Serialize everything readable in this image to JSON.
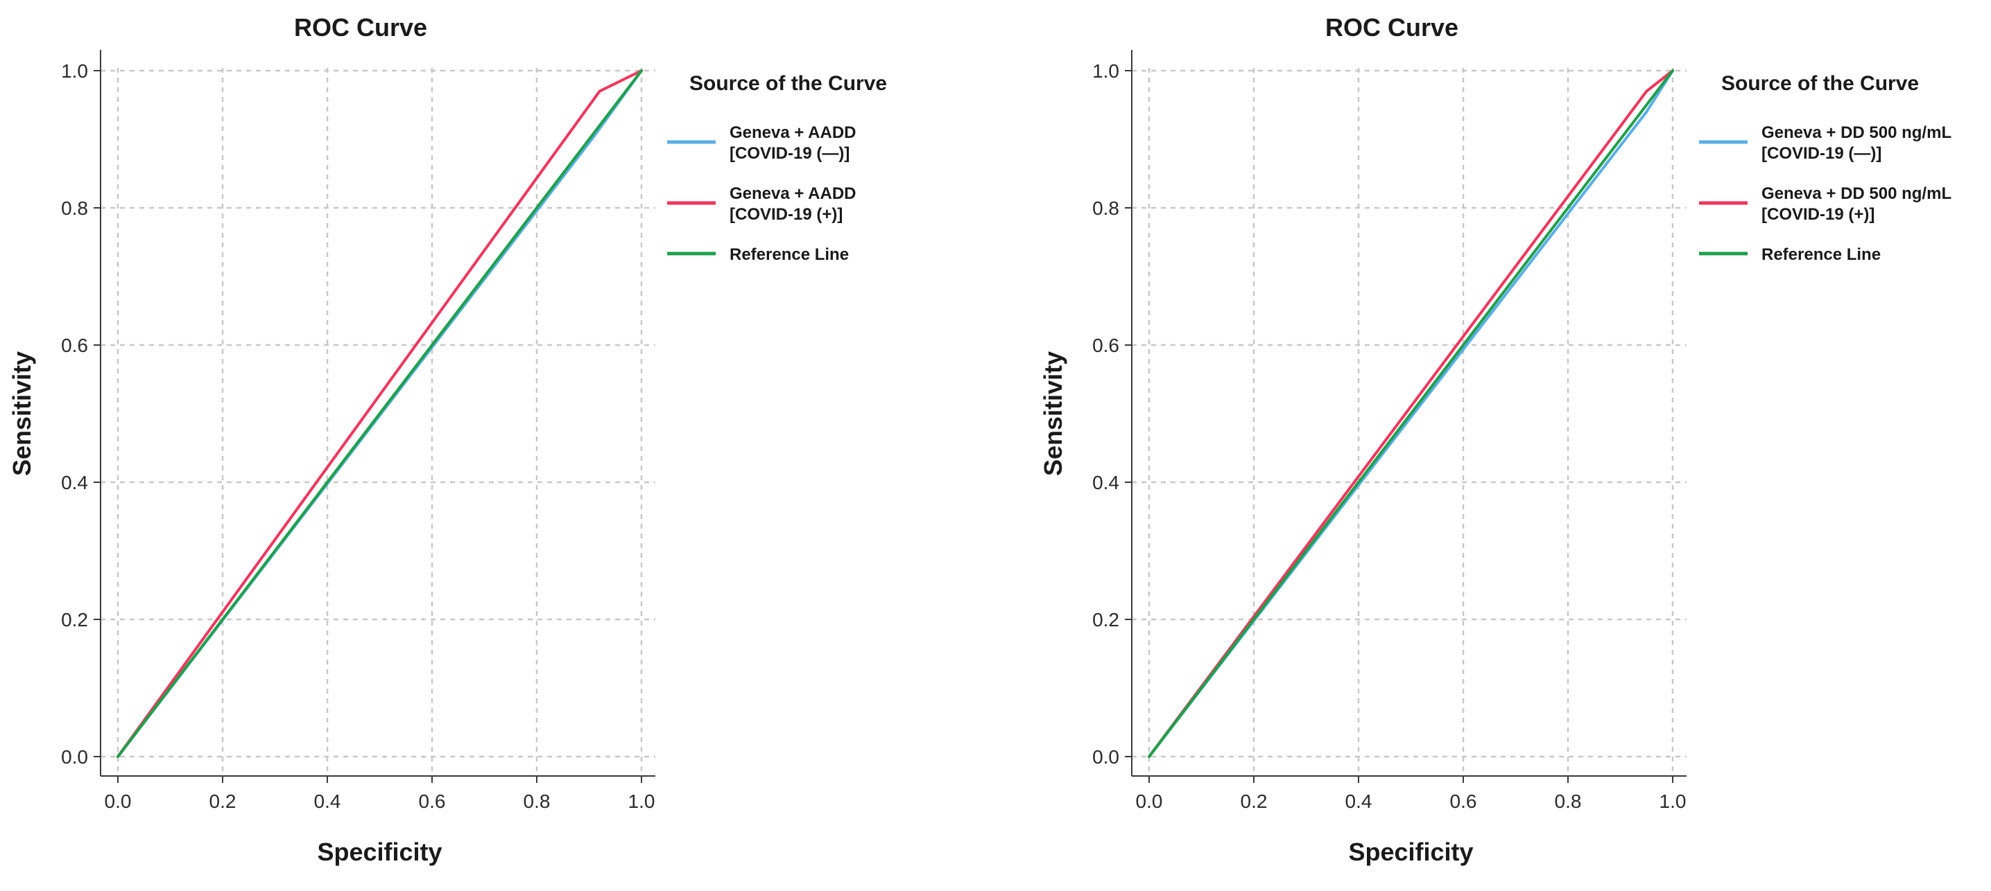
{
  "chart_data": [
    {
      "type": "line",
      "title": "ROC Curve",
      "xlabel": "Specificity",
      "ylabel": "Sensitivity",
      "xlim": [
        0,
        1
      ],
      "ylim": [
        0,
        1
      ],
      "xticks": [
        "0.0",
        "0.2",
        "0.4",
        "0.6",
        "0.8",
        "1.0"
      ],
      "yticks": [
        "0.0",
        "0.2",
        "0.4",
        "0.6",
        "0.8",
        "1.0"
      ],
      "grid": true,
      "legend_position": "right",
      "legend_title": "Source of the Curve",
      "series": [
        {
          "name": "Geneva + AADD [COVID-19 (—)]",
          "label_lines": [
            "Geneva + AADD",
            "[COVID-19 (—)]"
          ],
          "color": "#5aaee6",
          "x": [
            0,
            0.91,
            1
          ],
          "y": [
            0,
            0.905,
            1
          ]
        },
        {
          "name": "Geneva + AADD [COVID-19 (+)]",
          "label_lines": [
            "Geneva + AADD",
            "[COVID-19 (+)]"
          ],
          "color": "#f0365e",
          "x": [
            0,
            0.92,
            1
          ],
          "y": [
            0,
            0.97,
            1
          ]
        },
        {
          "name": "Reference Line",
          "label_lines": [
            "Reference Line"
          ],
          "color": "#1fa04a",
          "x": [
            0,
            1
          ],
          "y": [
            0,
            1
          ]
        }
      ]
    },
    {
      "type": "line",
      "title": "ROC Curve",
      "xlabel": "Specificity",
      "ylabel": "Sensitivity",
      "xlim": [
        0,
        1
      ],
      "ylim": [
        0,
        1
      ],
      "xticks": [
        "0.0",
        "0.2",
        "0.4",
        "0.6",
        "0.8",
        "1.0"
      ],
      "yticks": [
        "0.0",
        "0.2",
        "0.4",
        "0.6",
        "0.8",
        "1.0"
      ],
      "grid": true,
      "legend_position": "right",
      "legend_title": "Source of the Curve",
      "series": [
        {
          "name": "Geneva + DD 500 ng/mL [COVID-19 (—)]",
          "label_lines": [
            "Geneva + DD 500 ng/mL",
            "[COVID-19 (—)]"
          ],
          "color": "#5aaee6",
          "x": [
            0,
            0.95,
            1
          ],
          "y": [
            0,
            0.94,
            1
          ]
        },
        {
          "name": "Geneva + DD 500 ng/mL [COVID-19 (+)]",
          "label_lines": [
            "Geneva + DD 500 ng/mL",
            "[COVID-19 (+)]"
          ],
          "color": "#f0365e",
          "x": [
            0,
            0.95,
            1
          ],
          "y": [
            0,
            0.97,
            1
          ]
        },
        {
          "name": "Reference Line",
          "label_lines": [
            "Reference Line"
          ],
          "color": "#1fa04a",
          "x": [
            0,
            1
          ],
          "y": [
            0,
            1
          ]
        }
      ]
    }
  ]
}
